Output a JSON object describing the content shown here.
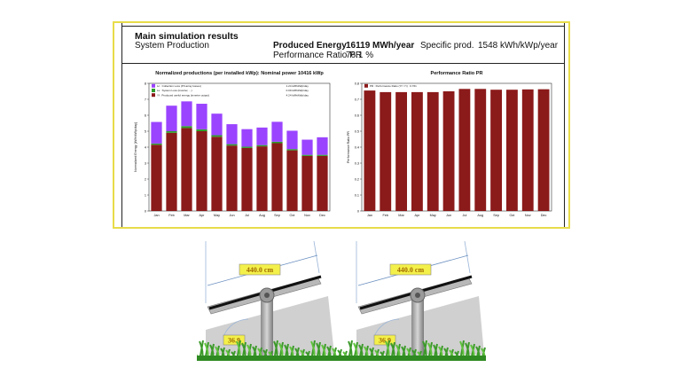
{
  "report": {
    "title": "Main simulation results",
    "subtitle": "System Production",
    "produced_energy_label": "Produced Energy",
    "produced_energy_value": "16119 MWh/year",
    "specific_prod_label": "Specific prod.",
    "specific_prod_value": "1548 kWh/kWp/year",
    "pr_label": "Performance Ratio PR",
    "pr_value": "76.1 %"
  },
  "chart_data": [
    {
      "type": "bar",
      "stacked": true,
      "title": "Normalized productions (per installed kWp):  Nominal power 10416 kWp",
      "ylabel": "Normalized Energy [kWh/kWp/day]",
      "xlabel": "",
      "ylim": [
        0,
        8
      ],
      "yticks": [
        0,
        1,
        2,
        3,
        4,
        5,
        6,
        7,
        8
      ],
      "grid": false,
      "legend_position": "top-left",
      "categories": [
        "Jan",
        "Feb",
        "Mar",
        "Apr",
        "May",
        "Jun",
        "Jul",
        "Aug",
        "Sep",
        "Oct",
        "Nov",
        "Dec"
      ],
      "series": [
        {
          "name": "Yf : Produced useful energy  (inverter output)",
          "legend_value": "4.24 kWh/kWp/day",
          "color": "#8b1a1a",
          "values": [
            4.15,
            4.9,
            5.2,
            5.0,
            4.65,
            4.1,
            3.95,
            4.05,
            4.25,
            3.8,
            3.45,
            3.45
          ]
        },
        {
          "name": "Ls : System Loss  (inverter, ...)",
          "legend_value": "0.09 kWh/kWp/day",
          "color": "#2e9e2e",
          "values": [
            0.08,
            0.1,
            0.12,
            0.12,
            0.1,
            0.09,
            0.08,
            0.08,
            0.09,
            0.08,
            0.07,
            0.07
          ]
        },
        {
          "name": "Lc : Collection Loss (PV-array losses)",
          "legend_value": "1.24 kWh/kWp/day",
          "color": "#9a44ff",
          "values": [
            1.35,
            1.6,
            1.55,
            1.6,
            1.35,
            1.25,
            1.1,
            1.1,
            1.25,
            1.15,
            0.95,
            1.1
          ]
        }
      ]
    },
    {
      "type": "bar",
      "title": "Performance Ratio PR",
      "ylabel": "Performance Ratio PR",
      "xlabel": "",
      "ylim": [
        0,
        0.8
      ],
      "yticks": [
        0,
        0.1,
        0.2,
        0.3,
        0.4,
        0.5,
        0.6,
        0.7,
        0.8
      ],
      "grid": false,
      "legend_position": "top-left",
      "categories": [
        "Jan",
        "Feb",
        "Mar",
        "Apr",
        "May",
        "Jun",
        "Jul",
        "Aug",
        "Sep",
        "Oct",
        "Nov",
        "Dec"
      ],
      "series": [
        {
          "name": "PR : Performance Ratio (Yf / Yr) : 0.761",
          "color": "#8b1a1a",
          "values": [
            0.755,
            0.745,
            0.745,
            0.745,
            0.745,
            0.75,
            0.765,
            0.765,
            0.76,
            0.76,
            0.762,
            0.763
          ]
        }
      ]
    }
  ],
  "illustration": {
    "dimension_label": "440.0 cm",
    "tilt_label": "36.9",
    "trackers": 2
  }
}
